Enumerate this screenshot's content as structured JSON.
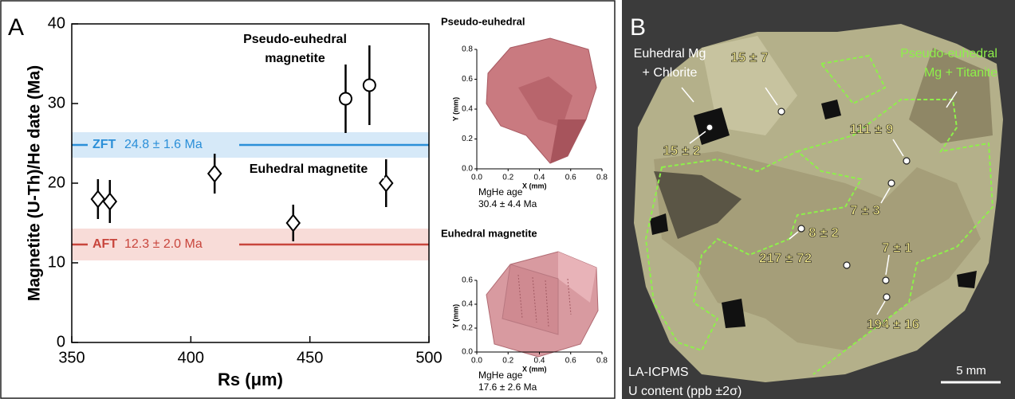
{
  "chart_data": [
    {
      "type": "scatter",
      "panel_label": "A",
      "xlabel": "Rs (μm)",
      "ylabel": "Magnetite (U-Th)/He date (Ma)",
      "xlim": [
        350,
        500
      ],
      "xticks": [
        350,
        400,
        450,
        500
      ],
      "ylim": [
        0,
        40
      ],
      "yticks": [
        0,
        10,
        20,
        30,
        40
      ],
      "series": [
        {
          "name": "Euhedral magnetite",
          "marker": "diamond",
          "color": "#000000",
          "x": [
            361,
            366,
            410,
            443,
            482
          ],
          "values": [
            18,
            17.7,
            21.2,
            15,
            20
          ],
          "errors": [
            2.5,
            2.7,
            2.5,
            2.3,
            3
          ]
        },
        {
          "name": "Pseudo-euhedral magnetite",
          "marker": "circle",
          "color": "#000000",
          "x": [
            465,
            475
          ],
          "values": [
            30.6,
            32.3
          ],
          "errors": [
            4.3,
            5
          ]
        }
      ],
      "reference_lines": [
        {
          "name": "ZFT",
          "value": 24.8,
          "error": 1.6,
          "label": "24.8 ± 1.6 Ma",
          "color": "#2b8fd8",
          "band_color": "#d6e9f8"
        },
        {
          "name": "AFT",
          "value": 12.3,
          "error": 2.0,
          "label": "12.3 ± 2.0 Ma",
          "color": "#c8453c",
          "band_color": "#f8dcd8"
        }
      ]
    },
    {
      "type": "surface",
      "title": "Pseudo-euhedral",
      "xlabel": "X (mm)",
      "ylabel": "Y (mm)",
      "xlim": [
        0,
        0.8
      ],
      "xticks": [
        {
          "value": 0,
          "label": "0.0"
        },
        {
          "value": 0.2,
          "label": "0.2"
        },
        {
          "value": 0.4,
          "label": "0.4"
        },
        {
          "value": 0.6,
          "label": "0.6"
        },
        {
          "value": 0.8,
          "label": "0.8"
        }
      ],
      "ylim": [
        0,
        0.8
      ],
      "yticks": [
        {
          "value": 0,
          "label": "0.0"
        },
        {
          "value": 0.2,
          "label": "0.2"
        },
        {
          "value": 0.4,
          "label": "0.4"
        },
        {
          "value": 0.6,
          "label": "0.6"
        },
        {
          "value": 0.8,
          "label": "0.8"
        }
      ],
      "caption": [
        "MgHe age",
        "30.4 ± 4.4 Ma"
      ]
    },
    {
      "type": "surface",
      "title": "Euhedral magnetite",
      "xlabel": "X (mm)",
      "ylabel": "Y (mm)",
      "xlim": [
        0,
        0.8
      ],
      "xticks": [
        {
          "value": 0,
          "label": "0.0"
        },
        {
          "value": 0.2,
          "label": "0.2"
        },
        {
          "value": 0.4,
          "label": "0.4"
        },
        {
          "value": 0.6,
          "label": "0.6"
        },
        {
          "value": 0.8,
          "label": "0.8"
        }
      ],
      "ylim": [
        0,
        0.6
      ],
      "yticks": [
        {
          "value": 0,
          "label": "0.0"
        },
        {
          "value": 0.2,
          "label": "0.2"
        },
        {
          "value": 0.4,
          "label": "0.4"
        },
        {
          "value": 0.6,
          "label": "0.6"
        }
      ],
      "caption": [
        "MgHe age",
        "17.6 ± 2.6 Ma"
      ]
    }
  ],
  "panel_b": {
    "label": "B",
    "annotations": [
      "Euhedral Mg",
      "+ Chlorite",
      "Pseudo-euhedral",
      "Mg + Titanite"
    ],
    "u_contents": [
      "15 ± 7",
      "15 ± 2",
      "111 ± 9",
      "7 ± 3",
      "8 ± 2",
      "7 ± 1",
      "217 ± 72",
      "194 ± 16"
    ],
    "method": "LA-ICPMS",
    "legend": "U content (ppb ±2σ)",
    "scale": "5 mm"
  }
}
